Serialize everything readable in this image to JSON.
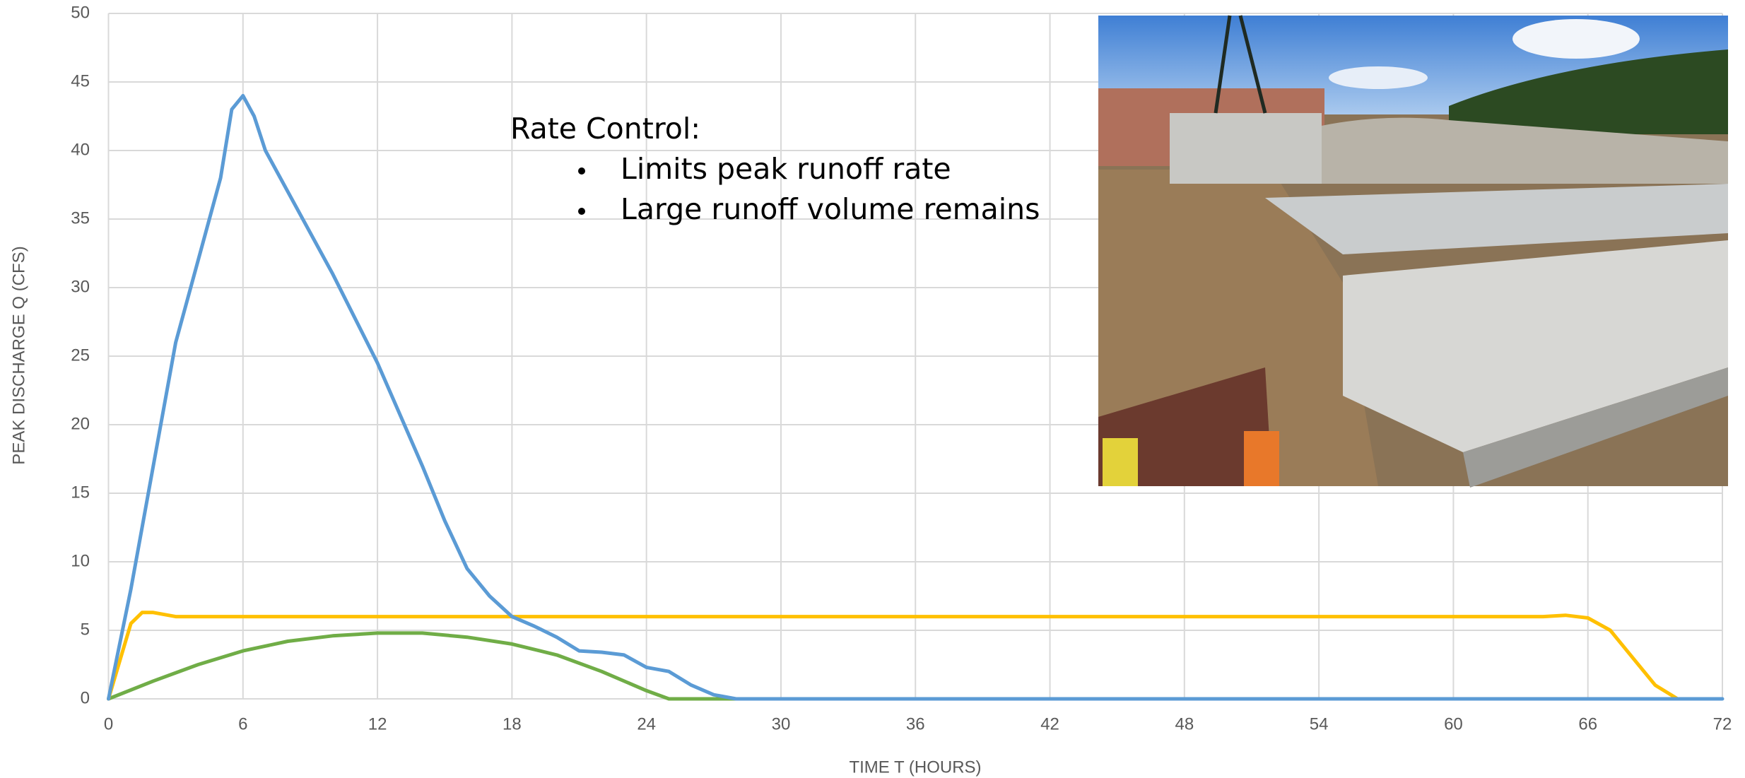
{
  "chart_data": {
    "type": "line",
    "ylabel": "PEAK DISCHARGE Q (CFS)",
    "xlabel": "TIME T (HOURS)",
    "annotation": {
      "title": "Rate Control:",
      "bullets": [
        "Limits peak runoff rate",
        "Large runoff volume remains"
      ]
    },
    "xlim": [
      0,
      72
    ],
    "ylim": [
      0,
      50
    ],
    "xticks": [
      0,
      6,
      12,
      18,
      24,
      30,
      36,
      42,
      48,
      54,
      60,
      66,
      72
    ],
    "yticks": [
      0,
      5,
      10,
      15,
      20,
      25,
      30,
      35,
      40,
      45,
      50
    ],
    "grid": true,
    "series": [
      {
        "color": "#5b9bd5",
        "x": [
          0,
          1,
          2,
          3,
          4,
          5,
          5.5,
          6,
          6.5,
          7,
          8,
          10,
          12,
          14,
          15,
          16,
          17,
          18,
          19,
          20,
          21,
          22,
          23,
          24,
          25,
          26,
          27,
          28,
          30,
          72
        ],
        "values": [
          0,
          8,
          17,
          26,
          32,
          38,
          43,
          44,
          42.5,
          40,
          37,
          31,
          24.5,
          17,
          13,
          9.5,
          7.5,
          6,
          5.3,
          4.5,
          3.5,
          3.4,
          3.2,
          2.3,
          2,
          1,
          0.3,
          0,
          0,
          0
        ]
      },
      {
        "color": "#ffc000",
        "x": [
          0,
          1,
          1.5,
          2,
          3,
          18,
          36,
          54,
          64,
          65,
          66,
          67,
          68,
          69,
          70
        ],
        "values": [
          0,
          5.5,
          6.3,
          6.3,
          6,
          6,
          6,
          6,
          6,
          6.1,
          5.9,
          5,
          3,
          1,
          0
        ]
      },
      {
        "color": "#70ad47",
        "x": [
          0,
          2,
          4,
          6,
          8,
          10,
          12,
          14,
          16,
          18,
          20,
          22,
          24,
          25,
          28
        ],
        "values": [
          0,
          1.3,
          2.5,
          3.5,
          4.2,
          4.6,
          4.8,
          4.8,
          4.5,
          4,
          3.2,
          2,
          0.6,
          0,
          0
        ]
      }
    ]
  }
}
